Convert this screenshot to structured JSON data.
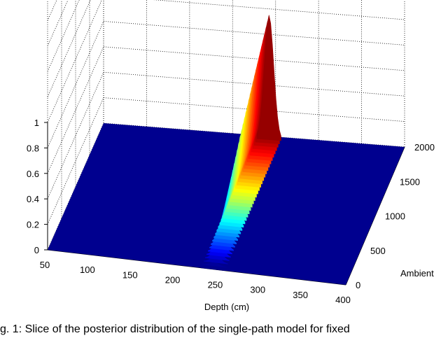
{
  "chart_data": {
    "type": "surface",
    "title": "",
    "xlabel": "Depth (cm)",
    "ylabel": "Ambient",
    "zlabel": "",
    "xlim": [
      50,
      400
    ],
    "ylim": [
      0,
      2000
    ],
    "zlim": [
      0,
      1
    ],
    "x_ticks": [
      "50",
      "100",
      "150",
      "200",
      "250",
      "300",
      "350",
      "400"
    ],
    "y_ticks": [
      "0",
      "500",
      "1000",
      "1500",
      "2000"
    ],
    "z_ticks": [
      "0",
      "0.2",
      "0.4",
      "0.6",
      "0.8",
      "1"
    ],
    "grid": true,
    "colormap": "jet",
    "surface_color_at_zero": "#00008f",
    "peak": {
      "x": 244,
      "y": 2000,
      "z": 1.0,
      "description_points": [
        {
          "x": 244,
          "y": 2000,
          "z": 1.0
        },
        {
          "x": 244,
          "y": 1500,
          "z": 0.78
        },
        {
          "x": 244,
          "y": 1000,
          "z": 0.55
        },
        {
          "x": 244,
          "y": 500,
          "z": 0.27
        },
        {
          "x": 244,
          "y": 0,
          "z": 0.0
        }
      ]
    }
  },
  "caption": "g. 1: Slice of the posterior distribution of the single-path model for fixed"
}
